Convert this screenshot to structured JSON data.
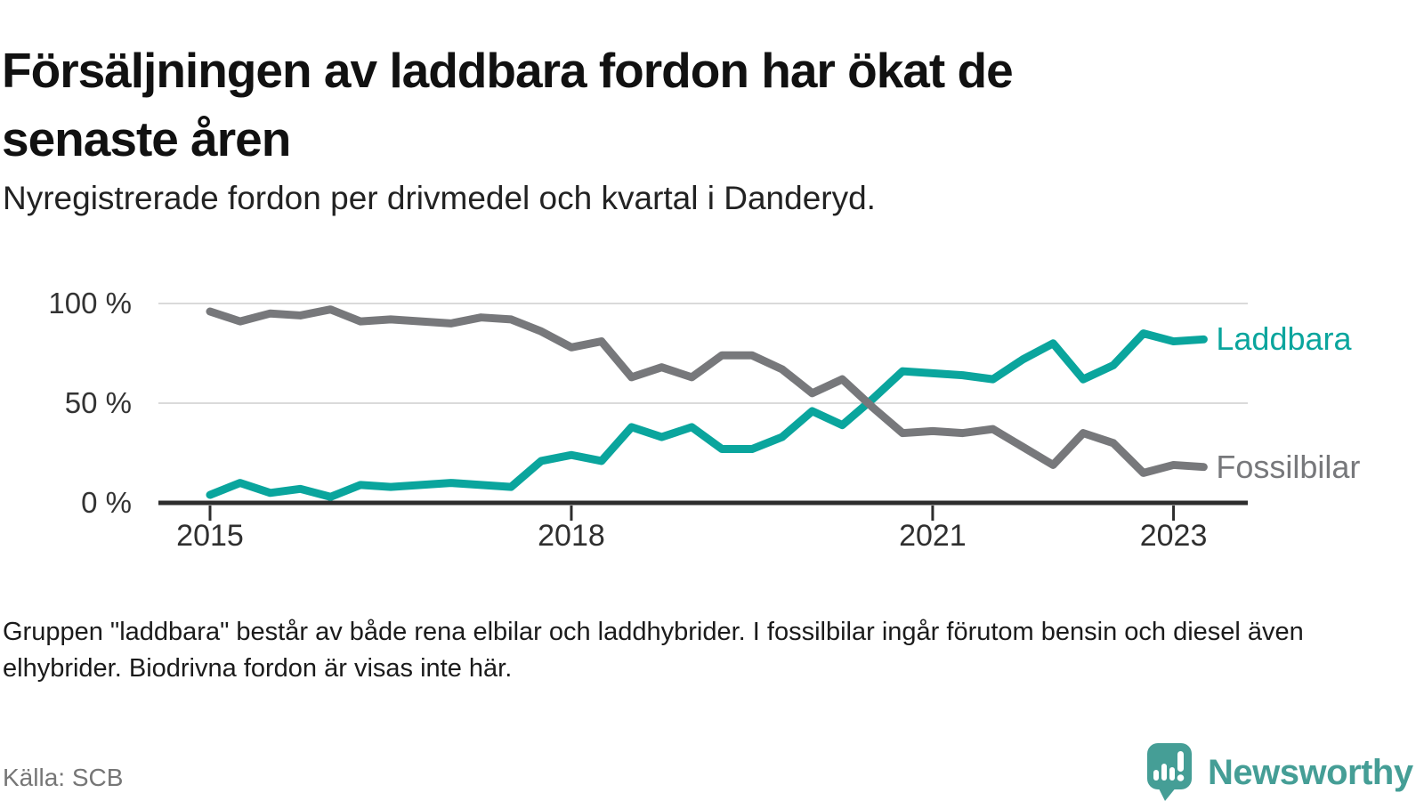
{
  "title": {
    "line1": "Försäljningen av laddbara fordon har ökat de",
    "line2": "senaste åren"
  },
  "subtitle": "Nyregistrerade fordon per drivmedel och kvartal i Danderyd.",
  "footnote": "Gruppen \"laddbara\" består av både rena elbilar och laddhybrider. I fossilbilar ingår förutom bensin och diesel även elhybrider. Biodrivna fordon är visas inte här.",
  "source": "Källa: SCB",
  "logo": {
    "text": "Newsworthy",
    "color": "#459e96"
  },
  "colors": {
    "laddbara": "#0aa59d",
    "fossil": "#77787b",
    "grid": "#dadada",
    "axis": "#2d2d2d",
    "tick_text": "#2f2f2f"
  },
  "chart_data": {
    "type": "line",
    "unit": "%",
    "title": "Nyregistrerade fordon per drivmedel och kvartal i Danderyd",
    "ylim": [
      0,
      100
    ],
    "grid": "horizontal",
    "legend_position": "line-end",
    "x": [
      "2015 Q1",
      "2015 Q2",
      "2015 Q3",
      "2015 Q4",
      "2016 Q1",
      "2016 Q2",
      "2016 Q3",
      "2016 Q4",
      "2017 Q1",
      "2017 Q2",
      "2017 Q3",
      "2017 Q4",
      "2018 Q1",
      "2018 Q2",
      "2018 Q3",
      "2018 Q4",
      "2019 Q1",
      "2019 Q2",
      "2019 Q3",
      "2019 Q4",
      "2020 Q1",
      "2020 Q2",
      "2020 Q3",
      "2020 Q4",
      "2021 Q1",
      "2021 Q2",
      "2021 Q3",
      "2021 Q4",
      "2022 Q1",
      "2022 Q2",
      "2022 Q3",
      "2022 Q4",
      "2023 Q1",
      "2023 Q2"
    ],
    "y_ticks": [
      {
        "label": "100 %",
        "value": 100
      },
      {
        "label": "50 %",
        "value": 50
      },
      {
        "label": "0 %",
        "value": 0
      }
    ],
    "x_ticks": [
      {
        "label": "2015",
        "index": 0
      },
      {
        "label": "2018",
        "index": 12
      },
      {
        "label": "2021",
        "index": 24
      },
      {
        "label": "2023",
        "index": 32
      }
    ],
    "series": [
      {
        "name": "Laddbara",
        "color": "#0aa59d",
        "values": [
          4,
          10,
          5,
          7,
          3,
          9,
          8,
          9,
          10,
          9,
          8,
          21,
          24,
          21,
          38,
          33,
          38,
          27,
          27,
          33,
          46,
          39,
          52,
          66,
          65,
          64,
          62,
          72,
          80,
          62,
          69,
          85,
          81,
          82
        ]
      },
      {
        "name": "Fossilbilar",
        "color": "#77787b",
        "values": [
          96,
          91,
          95,
          94,
          97,
          91,
          92,
          91,
          90,
          93,
          92,
          86,
          78,
          81,
          63,
          68,
          63,
          74,
          74,
          67,
          55,
          62,
          48,
          35,
          36,
          35,
          37,
          28,
          19,
          35,
          30,
          15,
          19,
          18
        ]
      }
    ]
  }
}
